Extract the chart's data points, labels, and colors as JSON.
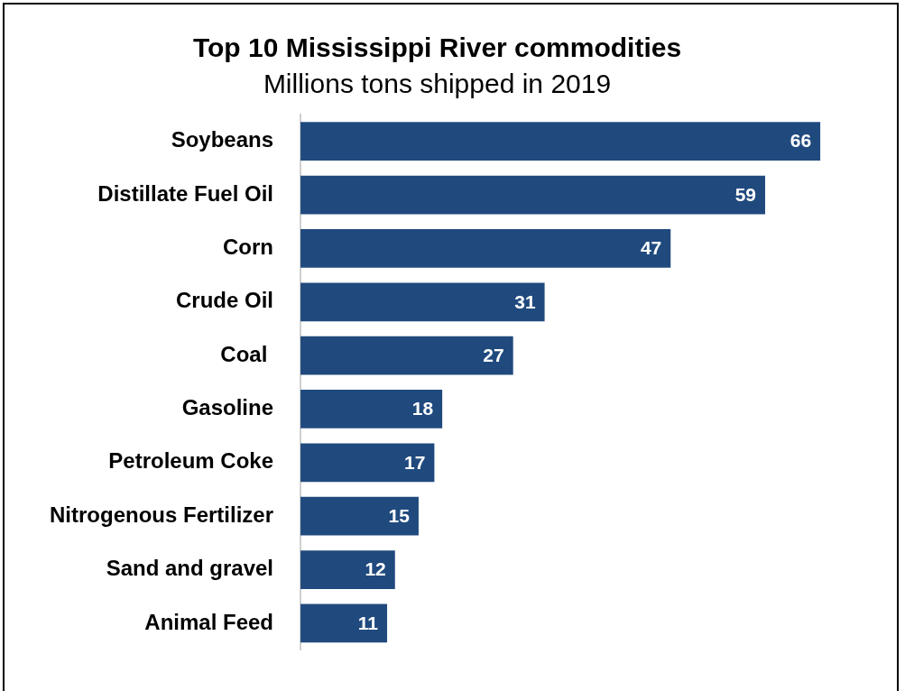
{
  "chart_data": {
    "type": "bar",
    "orientation": "horizontal",
    "title": "Top 10 Mississippi River commodities",
    "subtitle": "Millions tons shipped in 2019",
    "categories": [
      "Soybeans",
      "Distillate Fuel Oil",
      "Corn",
      "Crude Oil",
      "Coal ",
      "Gasoline",
      "Petroleum Coke",
      "Nitrogenous Fertilizer",
      "Sand and gravel",
      "Animal Feed"
    ],
    "values": [
      66,
      59,
      47,
      31,
      27,
      18,
      17,
      15,
      12,
      11
    ],
    "color": "#204a7e",
    "tick_labels": "y",
    "grid": false,
    "legend": false,
    "data_labels": true
  }
}
